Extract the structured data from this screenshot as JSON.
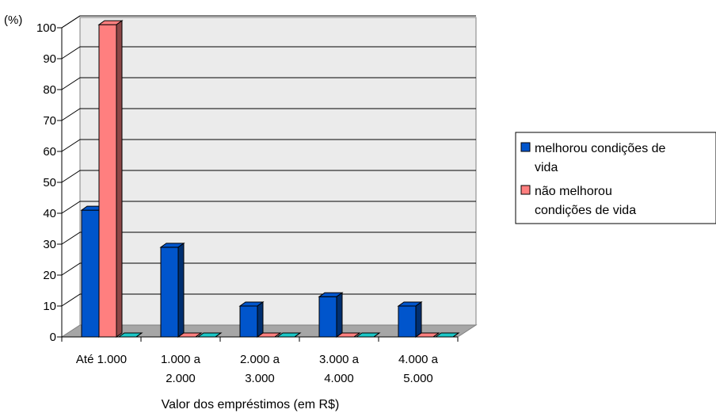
{
  "chart_data": {
    "type": "bar",
    "title": "",
    "xlabel": "Valor dos empréstimos (em R$)",
    "ylabel": "(%)",
    "ylim": [
      0,
      100
    ],
    "yticks": [
      0,
      10,
      20,
      30,
      40,
      50,
      60,
      70,
      80,
      90,
      100
    ],
    "grid": true,
    "legend_position": "right",
    "categories": [
      [
        "Até 1.000"
      ],
      [
        "1.000 a",
        "2.000"
      ],
      [
        "2.000 a",
        "3.000"
      ],
      [
        "3.000 a",
        "4.000"
      ],
      [
        "4.000 a",
        "5.000"
      ]
    ],
    "series": [
      {
        "name": "melhorou condições de vida",
        "legend_lines": [
          "melhorou condições de",
          "vida"
        ],
        "color": "#0055cc",
        "values": [
          41,
          29,
          10,
          13,
          10
        ]
      },
      {
        "name": "não melhorou condições de vida",
        "legend_lines": [
          "não melhorou",
          "condições de vida"
        ],
        "color": "#ff7f7f",
        "values": [
          101,
          0,
          0,
          0,
          0
        ]
      },
      {
        "name": "",
        "legend_lines": [],
        "color": "#1bc6c6",
        "values": [
          0,
          0,
          0,
          0,
          0
        ]
      }
    ]
  }
}
